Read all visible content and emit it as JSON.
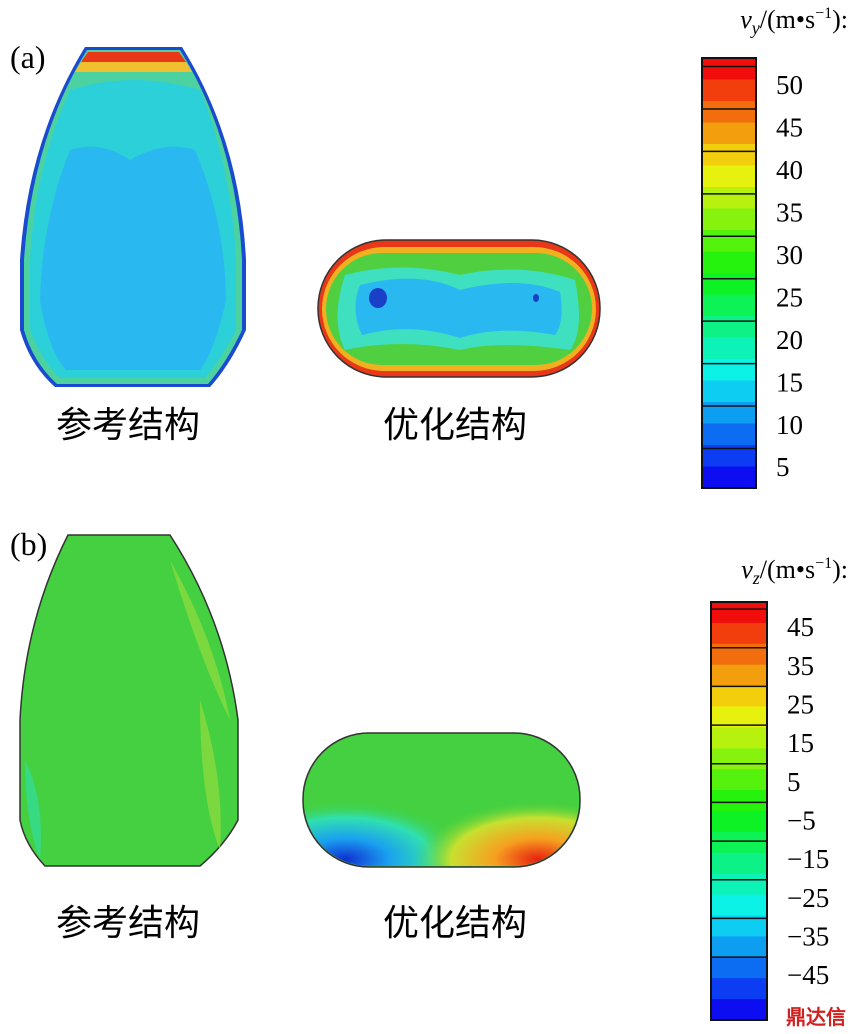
{
  "panels": [
    {
      "label": "(a)",
      "captions": [
        "参考结构",
        "优化结构"
      ],
      "colorbar": {
        "var": "v",
        "sub": "y",
        "unit": "/(m•s",
        "exp": "−1",
        "end": "):",
        "ticks": [
          5,
          10,
          15,
          20,
          25,
          30,
          35,
          40,
          45,
          50
        ]
      }
    },
    {
      "label": "(b)",
      "captions": [
        "参考结构",
        "优化结构"
      ],
      "colorbar": {
        "var": "v",
        "sub": "z",
        "unit": "/(m•s",
        "exp": "−1",
        "end": "):",
        "ticks": [
          {
            "value": -45,
            "label": "−45"
          },
          {
            "value": -35,
            "label": "−35"
          },
          {
            "value": -25,
            "label": "−25"
          },
          {
            "value": -15,
            "label": "−15"
          },
          {
            "value": -5,
            "label": "−5"
          },
          5,
          15,
          25,
          35,
          45
        ]
      }
    }
  ],
  "watermark": "鼎达信"
}
